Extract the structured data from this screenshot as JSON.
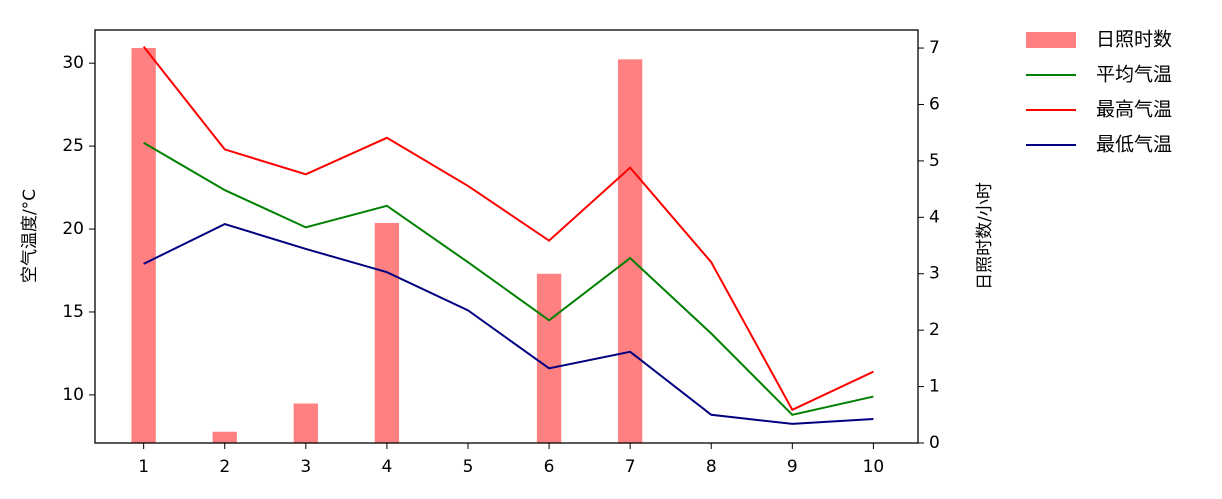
{
  "chart_data": {
    "type": "combo",
    "x": [
      1,
      2,
      3,
      4,
      5,
      6,
      7,
      8,
      9,
      10
    ],
    "xlim": [
      0.4,
      10.55
    ],
    "xticks": [
      1,
      2,
      3,
      4,
      5,
      6,
      7,
      8,
      9,
      10
    ],
    "ylim": [
      7.1,
      32
    ],
    "yticks": [
      10,
      15,
      20,
      25,
      30
    ],
    "y2lim": [
      0,
      7.32
    ],
    "y2ticks": [
      0,
      1,
      2,
      3,
      4,
      5,
      6,
      7
    ],
    "ylabel": "空气温度/°C",
    "y2label": "日照时数/小时",
    "legend": "outside-upper-right",
    "series": [
      {
        "name": "日照时数",
        "type": "bar",
        "axis": "y2",
        "color": "#ff8080",
        "values": [
          7.0,
          0.2,
          0.7,
          3.9,
          0,
          3.0,
          6.8,
          0,
          0,
          0
        ]
      },
      {
        "name": "平均气温",
        "type": "line",
        "color": "#008000",
        "values": [
          25.2,
          22.35,
          20.1,
          21.4,
          18.0,
          14.5,
          18.25,
          13.7,
          8.8,
          9.9
        ]
      },
      {
        "name": "最高气温",
        "type": "line",
        "color": "#ff0000",
        "values": [
          31.0,
          24.8,
          23.3,
          25.5,
          22.6,
          19.3,
          23.7,
          18.0,
          9.1,
          11.4
        ]
      },
      {
        "name": "最低气温",
        "type": "line",
        "color": "#000080",
        "values": [
          17.9,
          20.3,
          18.8,
          17.4,
          15.1,
          11.6,
          12.6,
          8.8,
          8.25,
          8.55
        ]
      }
    ]
  }
}
